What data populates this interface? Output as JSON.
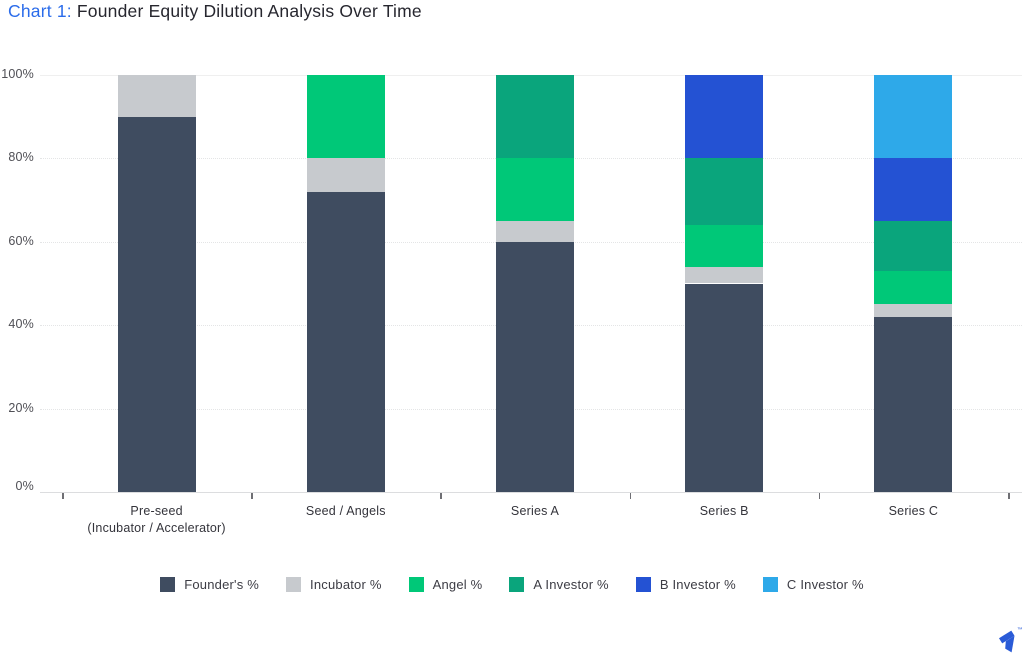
{
  "title": {
    "prefix": "Chart 1:",
    "rest": "Founder Equity Dilution Analysis Over Time"
  },
  "colors": {
    "title_accent": "#2b6cea",
    "brand_blue": "#2a5bd7"
  },
  "chart_data": {
    "type": "bar",
    "stacked": true,
    "title": "Founder Equity Dilution Analysis Over Time",
    "categories": [
      {
        "lines": [
          "Pre-seed",
          "(Incubator / Accelerator)"
        ]
      },
      {
        "lines": [
          "Seed / Angels"
        ]
      },
      {
        "lines": [
          "Series A"
        ]
      },
      {
        "lines": [
          "Series B"
        ]
      },
      {
        "lines": [
          "Series C"
        ]
      }
    ],
    "series": [
      {
        "name": "Founder's %",
        "color": "#3f4c60",
        "values": [
          90,
          72,
          60,
          50,
          42
        ]
      },
      {
        "name": "Incubator %",
        "color": "#c7cace",
        "values": [
          10,
          8,
          5,
          4,
          3
        ]
      },
      {
        "name": "Angel %",
        "color": "#00c878",
        "values": [
          0,
          20,
          15,
          10,
          8
        ]
      },
      {
        "name": "A Investor %",
        "color": "#0aa57c",
        "values": [
          0,
          0,
          20,
          16,
          12
        ]
      },
      {
        "name": "B Investor %",
        "color": "#2452d3",
        "values": [
          0,
          0,
          0,
          20,
          15
        ]
      },
      {
        "name": "C Investor %",
        "color": "#2ea9e9",
        "values": [
          0,
          0,
          0,
          0,
          20
        ]
      }
    ],
    "y_axis": {
      "ticks": [
        0,
        20,
        40,
        60,
        80,
        100
      ],
      "unit": "%",
      "min": 0,
      "max": 100
    },
    "grid": "horizontal-dotted",
    "legend_position": "bottom"
  },
  "branding": {
    "logo": "toptal-arrow-logo",
    "trademark": "™"
  }
}
